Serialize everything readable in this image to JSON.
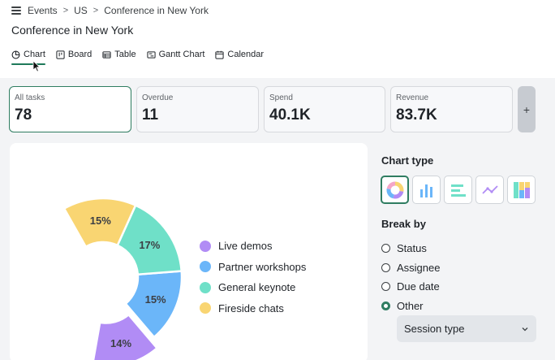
{
  "breadcrumb": {
    "items": [
      "Events",
      "US",
      "Conference in New York"
    ],
    "separator": ">"
  },
  "page": {
    "title": "Conference in New York"
  },
  "views": [
    {
      "label": "Chart",
      "icon": "pie-chart-icon",
      "active": true
    },
    {
      "label": "Board",
      "icon": "board-icon",
      "active": false
    },
    {
      "label": "Table",
      "icon": "table-icon",
      "active": false
    },
    {
      "label": "Gantt Chart",
      "icon": "gantt-icon",
      "active": false
    },
    {
      "label": "Calendar",
      "icon": "calendar-icon",
      "active": false
    }
  ],
  "stats": [
    {
      "label": "All tasks",
      "value": "78",
      "active": true
    },
    {
      "label": "Overdue",
      "value": "11",
      "active": false
    },
    {
      "label": "Spend",
      "value": "40.1K",
      "active": false
    },
    {
      "label": "Revenue",
      "value": "83.7K",
      "active": false
    }
  ],
  "add_stat_label": "+",
  "chart_data": {
    "type": "pie",
    "variant": "donut-partial",
    "categories": [
      "Live demos",
      "Partner workshops",
      "General keynote",
      "Fireside chats"
    ],
    "values": [
      14,
      15,
      17,
      15
    ],
    "labels": [
      "14%",
      "15%",
      "17%",
      "15%"
    ],
    "colors": [
      "#b18cf5",
      "#6bb6f9",
      "#6fe0c8",
      "#f9d572"
    ],
    "legend_position": "right"
  },
  "sidebar": {
    "chart_type_title": "Chart type",
    "chart_types": [
      {
        "icon": "donut-chart-icon",
        "active": true
      },
      {
        "icon": "bar-chart-icon",
        "active": false
      },
      {
        "icon": "horizontal-bar-chart-icon",
        "active": false
      },
      {
        "icon": "line-chart-icon",
        "active": false
      },
      {
        "icon": "stacked-bar-chart-icon",
        "active": false
      }
    ],
    "break_by_title": "Break by",
    "break_by_options": [
      {
        "label": "Status",
        "checked": false
      },
      {
        "label": "Assignee",
        "checked": false
      },
      {
        "label": "Due date",
        "checked": false
      },
      {
        "label": "Other",
        "checked": true
      }
    ],
    "select_value": "Session type"
  },
  "colors": {
    "accent": "#2f7d61"
  }
}
